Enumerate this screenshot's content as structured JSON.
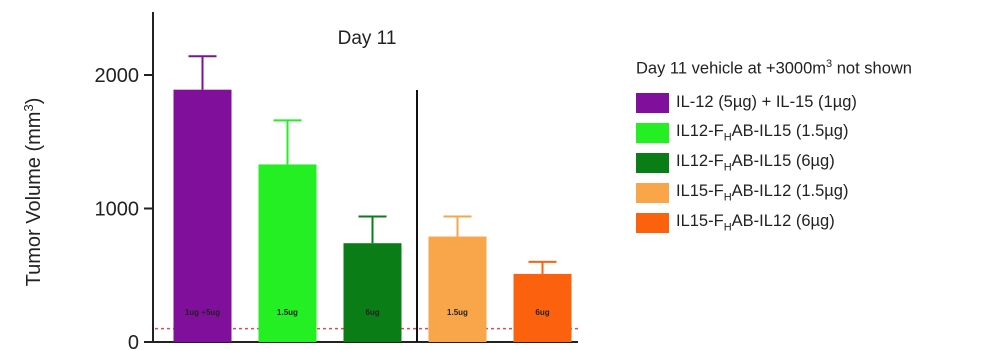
{
  "chart_data": {
    "type": "bar",
    "title": "Day 11",
    "ylabel": "Tumor Volume (mm³)",
    "ylim": [
      0,
      2500
    ],
    "yticks": [
      0,
      1000,
      2000
    ],
    "reference_line_y": 100,
    "group_separator_after_index": 2,
    "bars": [
      {
        "name": "IL-12 (5µg) + IL-15 (1µg)",
        "legend_parts": [
          "IL-12 (5µg) + IL-15 (1µg)"
        ],
        "dose_label": "1ug +5ug",
        "value": 1890,
        "error": 250,
        "color": "#800f9b"
      },
      {
        "name": "IL12-FHAB-IL15 (1.5µg)",
        "legend_parts": [
          "IL12-F",
          "H",
          "AB-IL15 (1.5µg)"
        ],
        "dose_label": "1.5ug",
        "value": 1330,
        "error": 330,
        "color": "#23ef23"
      },
      {
        "name": "IL12-FHAB-IL15 (6µg)",
        "legend_parts": [
          "IL12-F",
          "H",
          "AB-IL15 (6µg)"
        ],
        "dose_label": "6ug",
        "value": 740,
        "error": 200,
        "color": "#0b7d16"
      },
      {
        "name": "IL15-FHAB-IL12 (1.5µg)",
        "legend_parts": [
          "IL15-F",
          "H",
          "AB-IL12 (1.5µg)"
        ],
        "dose_label": "1.5ug",
        "value": 790,
        "error": 150,
        "color": "#f9a64a"
      },
      {
        "name": "IL15-FHAB-IL12 (6µg)",
        "legend_parts": [
          "IL15-F",
          "H",
          "AB-IL12 (6µg)"
        ],
        "dose_label": "6ug",
        "value": 510,
        "error": 90,
        "color": "#fc620d"
      }
    ],
    "legend": {
      "title_parts": [
        "Day 11 vehicle at +3000m",
        "3",
        " not shown"
      ],
      "placement": "right"
    }
  }
}
